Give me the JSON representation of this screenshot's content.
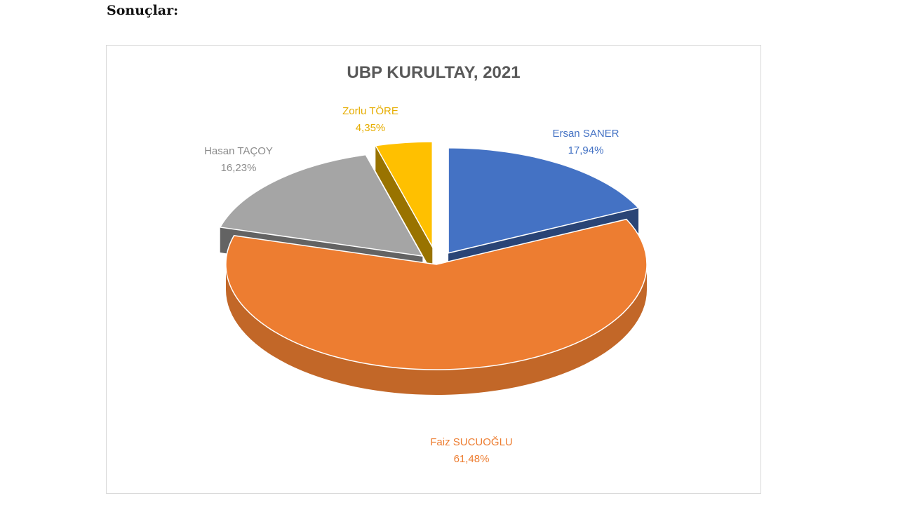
{
  "page": {
    "heading": "Sonuçlar:"
  },
  "colors": {
    "Faiz SUCUOĞLU": "#ED7D31",
    "Ersan SANER": "#4472C4",
    "Hasan TAÇOY": "#A5A5A5",
    "Zorlu TÖRE": "#FFC000",
    "title": "#595959"
  },
  "chart_data": {
    "type": "pie",
    "style": "3d-exploded",
    "title": "UBP KURULTAY, 2021",
    "slices": [
      {
        "name": "Ersan SANER",
        "value": 17.94,
        "label_name": "Ersan SANER",
        "label_value": "17,94%"
      },
      {
        "name": "Faiz SUCUOĞLU",
        "value": 61.48,
        "label_name": "Faiz SUCUOĞLU",
        "label_value": "61,48%"
      },
      {
        "name": "Hasan TAÇOY",
        "value": 16.23,
        "label_name": "Hasan TAÇOY",
        "label_value": "16,23%"
      },
      {
        "name": "Zorlu TÖRE",
        "value": 4.35,
        "label_name": "Zorlu TÖRE",
        "label_value": "4,35%"
      }
    ]
  }
}
